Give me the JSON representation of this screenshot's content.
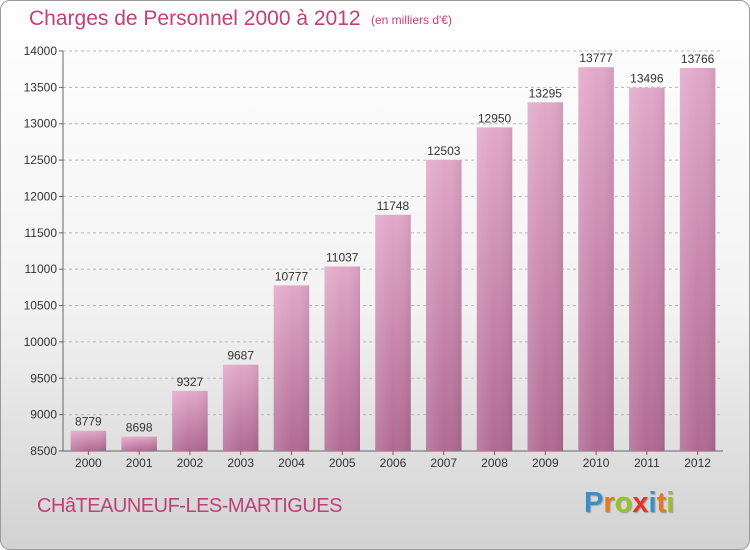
{
  "chart_data": {
    "type": "bar",
    "title": "Charges de Personnel 2000 à 2012",
    "unit_note": "(en milliers d'€)",
    "categories": [
      "2000",
      "2001",
      "2002",
      "2003",
      "2004",
      "2005",
      "2006",
      "2007",
      "2008",
      "2009",
      "2010",
      "2011",
      "2012"
    ],
    "values": [
      8779,
      8698,
      9327,
      9687,
      10777,
      11037,
      11748,
      12503,
      12950,
      13295,
      13777,
      13496,
      13766
    ],
    "ylim": [
      8500,
      14000
    ],
    "yticks": [
      8500,
      9000,
      9500,
      10000,
      10500,
      11000,
      11500,
      12000,
      12500,
      13000,
      13500,
      14000
    ],
    "xlabel": "",
    "ylabel": "",
    "grid": true,
    "bar_color": "#d68ab3"
  },
  "footer": {
    "city": "CHâTEAUNEUF-LES-MARTIGUES",
    "logo_letters": [
      {
        "ch": "P",
        "color": "#3b8ec8"
      },
      {
        "ch": "r",
        "color": "#e07b22"
      },
      {
        "ch": "o",
        "color": "#9bbf2a"
      },
      {
        "ch": "x",
        "color": "#e0342b"
      },
      {
        "ch": "i",
        "color": "#3b8ec8"
      },
      {
        "ch": "t",
        "color": "#e07b22"
      },
      {
        "ch": "i",
        "color": "#9bbf2a"
      }
    ]
  },
  "colors": {
    "accent": "#c0407a"
  }
}
